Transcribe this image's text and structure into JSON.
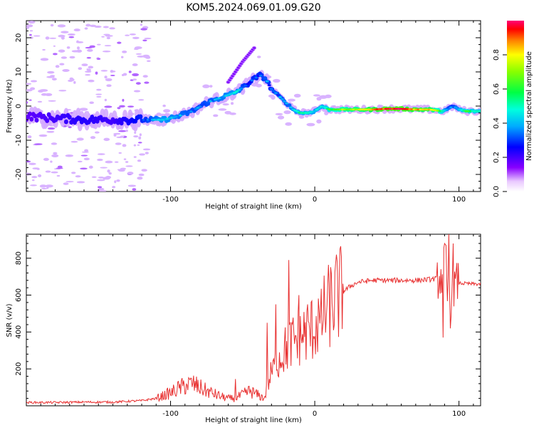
{
  "figure_title": "KOM5.2024.069.01.09.G20",
  "chart_data": [
    {
      "type": "heatmap",
      "title": "",
      "xlabel": "Height of straight line (km)",
      "ylabel": "Frequency (Hz)",
      "xlim": [
        -200,
        115
      ],
      "ylim": [
        -25,
        25
      ],
      "xticks": [
        -100,
        0,
        100
      ],
      "yticks": [
        -20,
        -10,
        0,
        10,
        20
      ],
      "colorbar": {
        "label": "Normalized spectral amplitude",
        "range": [
          0,
          1
        ],
        "ticks": [
          0.0,
          0.2,
          0.4,
          0.6,
          0.8
        ]
      },
      "ridge": {
        "x": [
          -200,
          -180,
          -160,
          -140,
          -125,
          -115,
          -105,
          -95,
          -85,
          -75,
          -65,
          -55,
          -48,
          -42,
          -38,
          -34,
          -30,
          -25,
          -20,
          -15,
          -10,
          -5,
          0,
          5,
          10,
          20,
          30,
          40,
          50,
          60,
          70,
          80,
          88,
          92,
          96,
          100,
          105,
          110,
          115
        ],
        "y": [
          -3,
          -3.5,
          -4,
          -4,
          -4,
          -4,
          -4,
          -3,
          -1.5,
          1,
          2.5,
          4,
          6,
          8,
          9,
          8,
          5,
          3,
          1,
          -1,
          -2,
          -2,
          -1.5,
          0,
          -1,
          -1,
          -1,
          -1,
          -0.8,
          -0.8,
          -1,
          -1,
          -1.5,
          -1,
          0,
          -1,
          -1.5,
          -1.5,
          -1.5
        ],
        "amplitude": [
          0.1,
          0.15,
          0.2,
          0.15,
          0.25,
          0.35,
          0.45,
          0.4,
          0.35,
          0.35,
          0.4,
          0.45,
          0.3,
          0.3,
          0.3,
          0.35,
          0.3,
          0.35,
          0.35,
          0.4,
          0.5,
          0.5,
          0.45,
          0.45,
          0.6,
          0.7,
          0.75,
          0.85,
          0.95,
          0.95,
          0.85,
          0.8,
          0.6,
          0.35,
          0.3,
          0.45,
          0.6,
          0.55,
          0.5
        ]
      },
      "secondary_ridge": {
        "x": [
          -60,
          -55,
          -50,
          -46,
          -42
        ],
        "y": [
          7,
          10,
          13,
          15,
          17
        ]
      }
    },
    {
      "type": "line",
      "title": "",
      "xlabel": "Height of straight line (km)",
      "ylabel": "SNR (v/v)",
      "xlim": [
        -200,
        115
      ],
      "ylim": [
        0,
        930
      ],
      "xticks": [
        -100,
        0,
        100
      ],
      "yticks": [
        200,
        400,
        600,
        800
      ],
      "color": "#e83030",
      "series": [
        {
          "x": [
            -200,
            -180,
            -160,
            -140,
            -120,
            -110,
            -100,
            -95,
            -90,
            -85,
            -80,
            -75,
            -70,
            -65,
            -60,
            -55,
            -50,
            -45,
            -40,
            -35,
            -30,
            -25,
            -20,
            -15,
            -10,
            -5,
            0,
            5,
            10,
            15,
            20,
            25,
            30,
            40,
            50,
            60,
            70,
            80,
            85,
            88,
            90,
            92,
            95,
            98,
            100,
            105,
            110,
            115
          ],
          "y": [
            18,
            18,
            20,
            20,
            28,
            40,
            70,
            90,
            110,
            120,
            100,
            80,
            65,
            50,
            40,
            40,
            60,
            80,
            60,
            40,
            180,
            250,
            310,
            350,
            380,
            400,
            430,
            480,
            540,
            590,
            620,
            650,
            670,
            680,
            680,
            680,
            680,
            685,
            690,
            700,
            820,
            600,
            600,
            660,
            665,
            662,
            660,
            660
          ]
        }
      ],
      "spikes": [
        {
          "x": -95,
          "y": 130
        },
        {
          "x": -86,
          "y": 150
        },
        {
          "x": -55,
          "y": 145
        },
        {
          "x": -33,
          "y": 450
        },
        {
          "x": -27,
          "y": 550
        },
        {
          "x": -18,
          "y": 790
        },
        {
          "x": -11,
          "y": 600
        },
        {
          "x": -5,
          "y": 550
        },
        {
          "x": 4,
          "y": 520
        },
        {
          "x": 91,
          "y": 870
        },
        {
          "x": 93,
          "y": 930
        },
        {
          "x": 96,
          "y": 880
        },
        {
          "x": 89,
          "y": 370
        },
        {
          "x": 94,
          "y": 420
        }
      ]
    }
  ]
}
